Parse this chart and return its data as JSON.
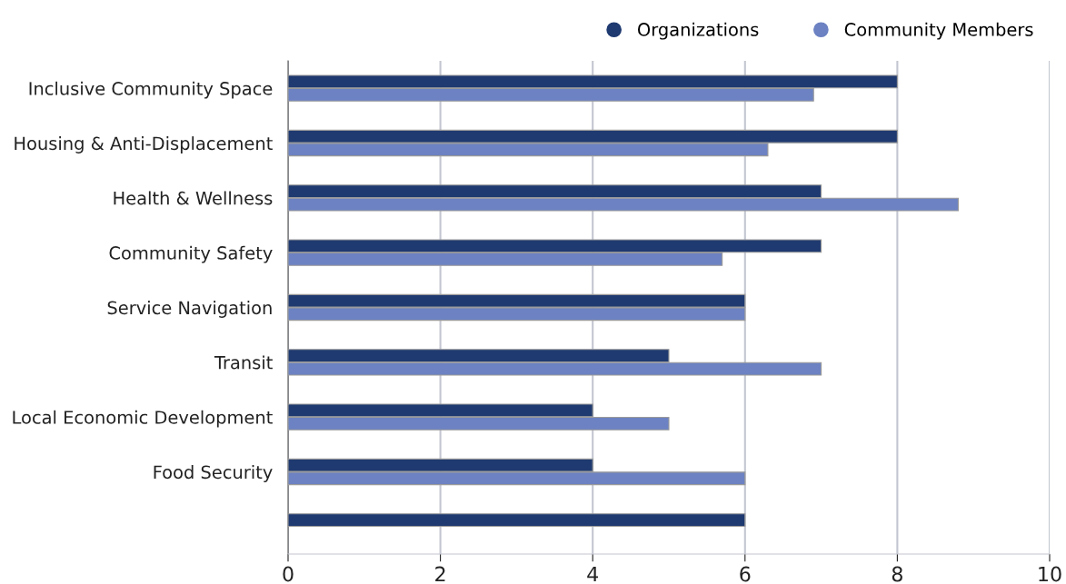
{
  "chart_data": {
    "type": "bar",
    "orientation": "horizontal",
    "categories": [
      "Inclusive Community Space",
      "Housing & Anti-Displacement",
      "Health & Wellness",
      "Community Safety",
      "Service Navigation",
      "Transit",
      "Local Economic Development",
      "Food Security",
      null
    ],
    "series": [
      {
        "name": "Organizations",
        "color": "#1f3a70",
        "values": [
          8,
          8,
          7,
          7,
          6,
          5,
          4,
          4,
          6
        ]
      },
      {
        "name": "Community Members",
        "color": "#6c82c2",
        "values": [
          6.9,
          6.3,
          8.8,
          5.7,
          6,
          7,
          5,
          6,
          null
        ]
      }
    ],
    "xlim": [
      0,
      10
    ],
    "xticks": [
      0,
      2,
      4,
      6,
      8,
      10
    ],
    "grid": "x",
    "legend": "top right"
  }
}
